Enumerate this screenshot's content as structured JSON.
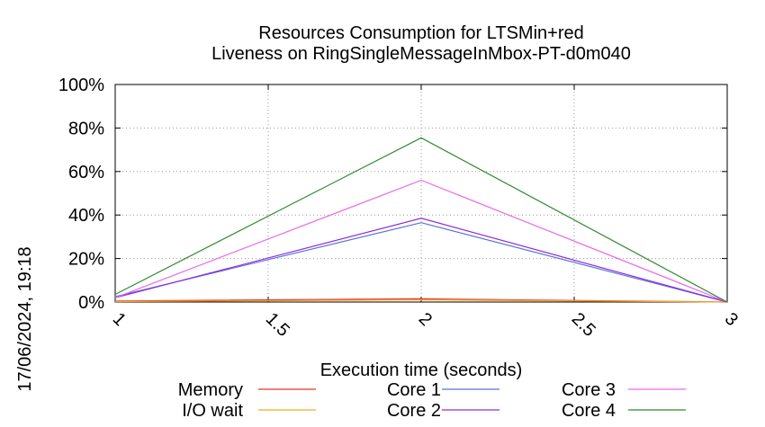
{
  "side_label": "17/06/2024, 19:18",
  "chart_data": {
    "type": "line",
    "title": "Resources Consumption for LTSMin+red",
    "subtitle": "Liveness on RingSingleMessageInMbox-PT-d0m040",
    "xlabel": "Execution time (seconds)",
    "ylabel": "",
    "xlim": [
      1,
      3
    ],
    "ylim": [
      0,
      100
    ],
    "grid": true,
    "legend_position": "bottom",
    "x_ticks": [
      "1",
      "1.5",
      "2",
      "2.5",
      "3"
    ],
    "y_ticks": [
      "0%",
      "20%",
      "40%",
      "60%",
      "80%",
      "100%"
    ],
    "x": [
      1,
      2,
      3
    ],
    "series": [
      {
        "name": "Memory",
        "color": "#e8352a",
        "values": [
          0.5,
          1.5,
          0
        ]
      },
      {
        "name": "I/O wait",
        "color": "#f5a623",
        "values": [
          0.2,
          1,
          0
        ]
      },
      {
        "name": "Core 1",
        "color": "#5b72d8",
        "values": [
          2.5,
          36.5,
          0
        ]
      },
      {
        "name": "Core 2",
        "color": "#8a2be2",
        "values": [
          2,
          38.5,
          0
        ]
      },
      {
        "name": "Core 3",
        "color": "#ee68ee",
        "values": [
          2,
          56,
          0
        ]
      },
      {
        "name": "Core 4",
        "color": "#2e8b2e",
        "values": [
          3.5,
          75.5,
          0
        ]
      }
    ]
  }
}
